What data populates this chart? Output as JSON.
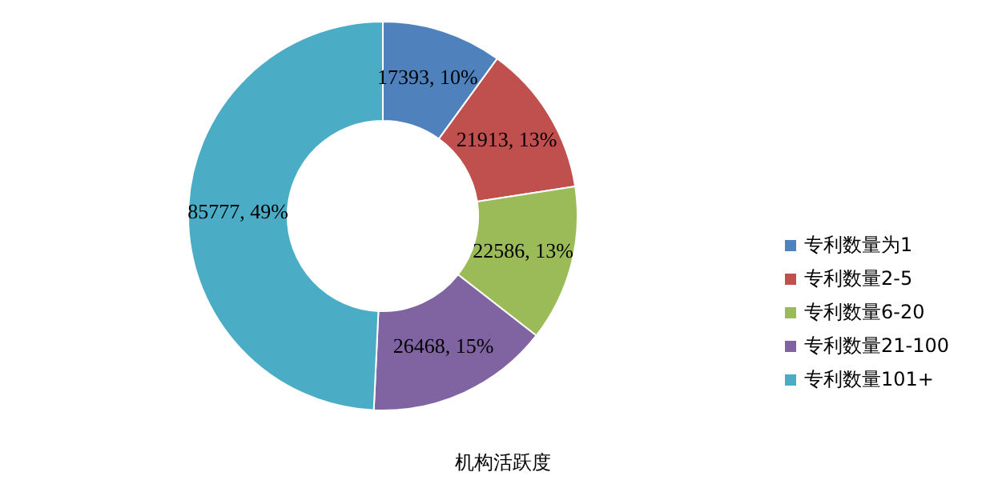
{
  "chart_data": {
    "type": "donut",
    "title": "机构活跃度",
    "categories": [
      "专利数量为1",
      "专利数量2-5",
      "专利数量6-20",
      "专利数量21-100",
      "专利数量101+"
    ],
    "values": [
      17393,
      21913,
      22586,
      26468,
      85777
    ],
    "value_labels": [
      "17393, 10%",
      "21913, 13%",
      "22586, 13%",
      "26468, 15%",
      "85777, 49%"
    ],
    "colors": [
      "#4f81bd",
      "#c0504d",
      "#9bbb59",
      "#8064a2",
      "#4bacc6"
    ],
    "legend": "right"
  }
}
